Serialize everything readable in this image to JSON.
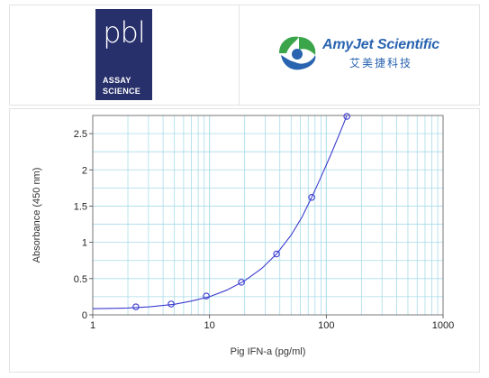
{
  "header": {
    "left_logo": {
      "mark": "pbl",
      "line1": "ASSAY",
      "line2": "SCIENCE",
      "color": "#27306b"
    },
    "right_logo": {
      "name": "AmyJet Scientific",
      "chinese": "艾美捷科技",
      "icon": "amyjet-leaf-icon",
      "brand_blue": "#2a64b0",
      "brand_green": "#3aa54a"
    }
  },
  "chart_data": {
    "type": "scatter",
    "xscale": "log",
    "xlim": [
      1,
      1000
    ],
    "ylim": [
      0,
      2.75
    ],
    "xlabel": "Pig IFN-a (pg/ml)",
    "ylabel": "Absorbance (450 nm)",
    "x_ticks": [
      1,
      10,
      100,
      1000
    ],
    "x_tick_labels": [
      "1",
      "10",
      "100",
      "1000"
    ],
    "y_ticks": [
      0,
      0.5,
      1,
      1.5,
      2,
      2.5
    ],
    "y_tick_labels": [
      "0",
      "0.5",
      "1",
      "1.5",
      "2",
      "2.5"
    ],
    "grid": true,
    "grid_color": "#a8dbea",
    "series": [
      {
        "points": [
          {
            "x": 2.34,
            "y": 0.11
          },
          {
            "x": 4.69,
            "y": 0.15
          },
          {
            "x": 9.38,
            "y": 0.26
          },
          {
            "x": 18.75,
            "y": 0.45
          },
          {
            "x": 37.5,
            "y": 0.84
          },
          {
            "x": 75,
            "y": 1.62
          },
          {
            "x": 150,
            "y": 2.76
          }
        ],
        "fit_curve": [
          {
            "x": 1,
            "y": 0.085
          },
          {
            "x": 1.5,
            "y": 0.09
          },
          {
            "x": 2,
            "y": 0.095
          },
          {
            "x": 3,
            "y": 0.11
          },
          {
            "x": 4,
            "y": 0.13
          },
          {
            "x": 5,
            "y": 0.145
          },
          {
            "x": 7,
            "y": 0.19
          },
          {
            "x": 10,
            "y": 0.25
          },
          {
            "x": 14,
            "y": 0.34
          },
          {
            "x": 20,
            "y": 0.47
          },
          {
            "x": 28,
            "y": 0.64
          },
          {
            "x": 37.5,
            "y": 0.84
          },
          {
            "x": 50,
            "y": 1.1
          },
          {
            "x": 62,
            "y": 1.35
          },
          {
            "x": 75,
            "y": 1.62
          },
          {
            "x": 90,
            "y": 1.9
          },
          {
            "x": 110,
            "y": 2.22
          },
          {
            "x": 130,
            "y": 2.5
          },
          {
            "x": 150,
            "y": 2.76
          }
        ],
        "color": "#3b3bd0"
      }
    ]
  }
}
